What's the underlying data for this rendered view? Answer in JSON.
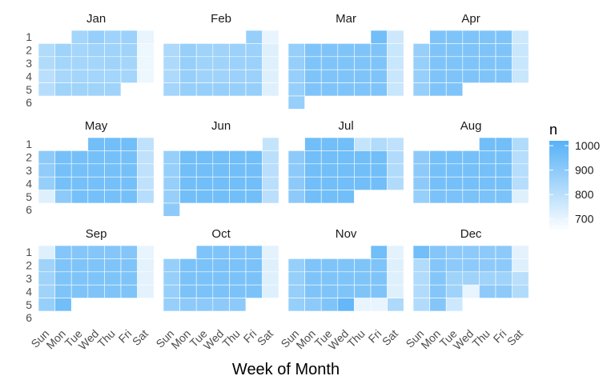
{
  "chart_data": {
    "type": "heatmap",
    "title": "",
    "xlabel": "Week of Month",
    "ylabel": "",
    "weekdays": [
      "Sun",
      "Mon",
      "Tue",
      "Wed",
      "Thu",
      "Fri",
      "Sat"
    ],
    "week_rows": [
      "1",
      "2",
      "3",
      "4",
      "5",
      "6"
    ],
    "legend": {
      "title": "n",
      "ticks": [
        1000,
        900,
        800,
        700
      ],
      "range": [
        650,
        1020
      ],
      "low_color": "#ffffff",
      "high_color": "#56B1F7",
      "position": "right"
    },
    "months": [
      {
        "name": "Jan",
        "grid": [
          [
            null,
            null,
            850,
            880,
            860,
            870,
            700
          ],
          [
            820,
            860,
            850,
            860,
            860,
            860,
            690
          ],
          [
            820,
            850,
            850,
            850,
            860,
            850,
            690
          ],
          [
            800,
            840,
            850,
            850,
            850,
            850,
            690
          ],
          [
            810,
            860,
            860,
            860,
            860,
            null,
            null
          ],
          [
            null,
            null,
            null,
            null,
            null,
            null,
            null
          ]
        ]
      },
      {
        "name": "Feb",
        "grid": [
          [
            null,
            null,
            null,
            null,
            null,
            880,
            700
          ],
          [
            830,
            880,
            860,
            860,
            870,
            870,
            720
          ],
          [
            830,
            880,
            860,
            860,
            870,
            870,
            720
          ],
          [
            830,
            880,
            860,
            860,
            870,
            870,
            720
          ],
          [
            850,
            880,
            880,
            880,
            880,
            880,
            720
          ],
          [
            null,
            null,
            null,
            null,
            null,
            null,
            null
          ]
        ]
      },
      {
        "name": "Mar",
        "grid": [
          [
            null,
            null,
            null,
            null,
            null,
            960,
            760
          ],
          [
            880,
            930,
            930,
            930,
            930,
            930,
            770
          ],
          [
            880,
            930,
            930,
            930,
            930,
            930,
            770
          ],
          [
            880,
            930,
            930,
            930,
            930,
            930,
            770
          ],
          [
            880,
            930,
            930,
            930,
            930,
            930,
            770
          ],
          [
            880,
            null,
            null,
            null,
            null,
            null,
            null
          ]
        ]
      },
      {
        "name": "Apr",
        "grid": [
          [
            null,
            930,
            930,
            930,
            930,
            930,
            760
          ],
          [
            880,
            930,
            930,
            930,
            930,
            930,
            770
          ],
          [
            880,
            930,
            930,
            930,
            930,
            930,
            770
          ],
          [
            880,
            930,
            930,
            930,
            930,
            930,
            770
          ],
          [
            880,
            930,
            930,
            null,
            null,
            null,
            null
          ],
          [
            null,
            null,
            null,
            null,
            null,
            null,
            null
          ]
        ]
      },
      {
        "name": "May",
        "grid": [
          [
            null,
            null,
            null,
            960,
            960,
            960,
            790
          ],
          [
            900,
            950,
            950,
            950,
            950,
            950,
            790
          ],
          [
            890,
            950,
            950,
            950,
            950,
            950,
            790
          ],
          [
            880,
            950,
            950,
            950,
            950,
            950,
            790
          ],
          [
            720,
            900,
            950,
            950,
            950,
            950,
            810
          ],
          [
            null,
            null,
            null,
            null,
            null,
            null,
            null
          ]
        ]
      },
      {
        "name": "Jun",
        "grid": [
          [
            null,
            null,
            null,
            null,
            null,
            null,
            780
          ],
          [
            880,
            960,
            960,
            960,
            960,
            960,
            800
          ],
          [
            880,
            960,
            960,
            960,
            960,
            960,
            800
          ],
          [
            880,
            960,
            960,
            960,
            960,
            960,
            800
          ],
          [
            880,
            960,
            960,
            960,
            960,
            960,
            800
          ],
          [
            900,
            null,
            null,
            null,
            null,
            null,
            null
          ]
        ]
      },
      {
        "name": "Jul",
        "grid": [
          [
            null,
            960,
            960,
            960,
            780,
            820,
            790
          ],
          [
            900,
            960,
            960,
            960,
            960,
            960,
            820
          ],
          [
            900,
            960,
            960,
            960,
            960,
            960,
            820
          ],
          [
            900,
            960,
            960,
            960,
            960,
            960,
            820
          ],
          [
            900,
            960,
            960,
            960,
            null,
            null,
            null
          ],
          [
            null,
            null,
            null,
            null,
            null,
            null,
            null
          ]
        ]
      },
      {
        "name": "Aug",
        "grid": [
          [
            null,
            null,
            null,
            null,
            960,
            960,
            820
          ],
          [
            900,
            950,
            950,
            950,
            950,
            950,
            810
          ],
          [
            900,
            950,
            950,
            950,
            950,
            950,
            810
          ],
          [
            900,
            950,
            950,
            950,
            950,
            950,
            810
          ],
          [
            880,
            940,
            940,
            940,
            940,
            940,
            720
          ],
          [
            null,
            null,
            null,
            null,
            null,
            null,
            null
          ]
        ]
      },
      {
        "name": "Sep",
        "grid": [
          [
            720,
            920,
            920,
            920,
            920,
            920,
            700
          ],
          [
            860,
            930,
            930,
            930,
            930,
            930,
            710
          ],
          [
            860,
            930,
            930,
            930,
            930,
            930,
            710
          ],
          [
            860,
            930,
            930,
            930,
            930,
            930,
            710
          ],
          [
            880,
            960,
            null,
            null,
            null,
            null,
            null
          ],
          [
            null,
            null,
            null,
            null,
            null,
            null,
            null
          ]
        ]
      },
      {
        "name": "Oct",
        "grid": [
          [
            null,
            null,
            930,
            930,
            930,
            930,
            710
          ],
          [
            880,
            940,
            940,
            940,
            940,
            940,
            720
          ],
          [
            880,
            940,
            940,
            940,
            940,
            940,
            720
          ],
          [
            880,
            940,
            940,
            940,
            940,
            940,
            720
          ],
          [
            880,
            900,
            900,
            900,
            900,
            null,
            null
          ],
          [
            null,
            null,
            null,
            null,
            null,
            null,
            null
          ]
        ]
      },
      {
        "name": "Nov",
        "grid": [
          [
            null,
            null,
            null,
            null,
            null,
            960,
            710
          ],
          [
            880,
            930,
            930,
            930,
            930,
            930,
            720
          ],
          [
            880,
            930,
            930,
            930,
            930,
            930,
            720
          ],
          [
            880,
            930,
            930,
            930,
            930,
            930,
            720
          ],
          [
            880,
            900,
            930,
            990,
            700,
            700,
            830
          ],
          [
            null,
            null,
            null,
            null,
            null,
            null,
            null
          ]
        ]
      },
      {
        "name": "Dec",
        "grid": [
          [
            960,
            920,
            900,
            900,
            900,
            900,
            710
          ],
          [
            820,
            920,
            900,
            900,
            900,
            900,
            720
          ],
          [
            820,
            920,
            860,
            860,
            860,
            860,
            800
          ],
          [
            820,
            920,
            860,
            700,
            900,
            900,
            820
          ],
          [
            820,
            920,
            760,
            null,
            null,
            null,
            null
          ],
          [
            null,
            null,
            null,
            null,
            null,
            null,
            null
          ]
        ]
      }
    ]
  }
}
